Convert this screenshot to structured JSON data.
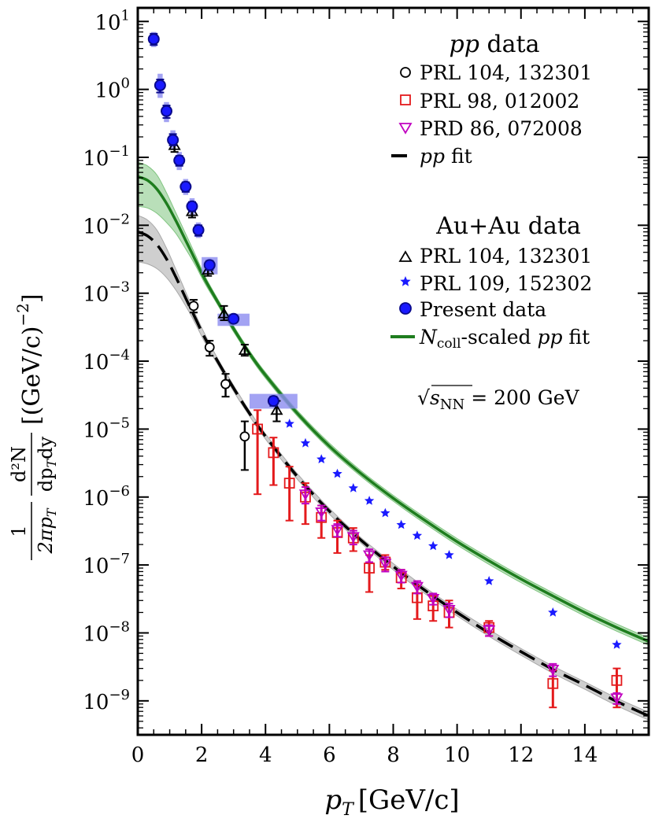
{
  "chart_data": {
    "type": "scatter",
    "xlabel_main": "p",
    "xlabel_sub": "T",
    "xlabel_unit": "[GeV/c]",
    "ylabel": "1/(2π p_T) d²N/(dp_T dy) [(GeV/c)⁻²]",
    "ylabel_parts": {
      "frac1_num": "1",
      "frac1_den": "2πp",
      "frac1_den_sub": "T",
      "frac2_num": "d²N",
      "frac2_den": "dp",
      "frac2_den_sub": "T",
      "frac2_den_tail": "dy",
      "unit": "[(GeV/c)",
      "unit_exp": "−2",
      "unit_close": "]"
    },
    "xlim": [
      0,
      16
    ],
    "ylim_log10": [
      -9.5,
      1.2
    ],
    "x_ticks": [
      0,
      2,
      4,
      6,
      8,
      10,
      12,
      14
    ],
    "y_tick_labels": [
      {
        "base": "10",
        "exp": "1",
        "v": 1
      },
      {
        "base": "10",
        "exp": "0",
        "v": 0
      },
      {
        "base": "10",
        "exp": "−1",
        "v": -1
      },
      {
        "base": "10",
        "exp": "−2",
        "v": -2
      },
      {
        "base": "10",
        "exp": "−3",
        "v": -3
      },
      {
        "base": "10",
        "exp": "−4",
        "v": -4
      },
      {
        "base": "10",
        "exp": "−5",
        "v": -5
      },
      {
        "base": "10",
        "exp": "−6",
        "v": -6
      },
      {
        "base": "10",
        "exp": "−7",
        "v": -7
      },
      {
        "base": "10",
        "exp": "−8",
        "v": -8
      },
      {
        "base": "10",
        "exp": "−9",
        "v": -9
      }
    ],
    "annotation": {
      "prefix": "√",
      "s": "s",
      "sub": "NN",
      "eq": " = 200 GeV"
    },
    "legend": {
      "pp_title_italic": "pp",
      "pp_title_rest": " data",
      "aa_title": "Au+Au data",
      "entries": [
        {
          "key": "pp_prl104",
          "label": "PRL 104, 132301"
        },
        {
          "key": "pp_prl98",
          "label": "PRL 98, 012002"
        },
        {
          "key": "pp_prd86",
          "label": "PRD 86, 072008"
        },
        {
          "key": "pp_fit",
          "label_italic": "pp",
          "label": " fit"
        },
        {
          "key": "aa_prl104",
          "label": "PRL 104, 132301"
        },
        {
          "key": "aa_prl109",
          "label": "PRL 109, 152302"
        },
        {
          "key": "aa_present",
          "label": "Present data"
        },
        {
          "key": "aa_fit",
          "label_italic_N": "N",
          "label_sub": "coll",
          "label_mid": "-scaled ",
          "label_italic_pp": "pp",
          "label": " fit"
        }
      ]
    },
    "colors": {
      "black": "#000000",
      "red": "#e41a1c",
      "magenta": "#c000c0",
      "blue": "#1a1aff",
      "navy": "#0a0a8c",
      "green": "#1e7d1e",
      "green_band": "#7fc47f",
      "gray_band": "#a8a8a8",
      "sys_box": "#8c8cf0"
    },
    "series": [
      {
        "name": "pp PRL 104, 132301",
        "marker": "circle-open",
        "color": "#000000",
        "x": [
          1.75,
          2.25,
          2.75,
          3.35
        ],
        "y": [
          0.00065,
          0.00016,
          4.6e-05,
          7.8e-06
        ],
        "ylo": [
          0.00052,
          0.00012,
          3e-05,
          2.5e-06
        ],
        "yhi": [
          0.0008,
          0.0002,
          6.5e-05,
          1.3e-05
        ]
      },
      {
        "name": "pp PRL 98, 012002",
        "marker": "square-open",
        "color": "#e41a1c",
        "x": [
          3.75,
          4.25,
          4.75,
          5.25,
          5.75,
          6.25,
          6.75,
          7.25,
          7.75,
          8.25,
          8.75,
          9.25,
          9.75,
          11.0,
          13.0,
          15.0
        ],
        "y": [
          1e-05,
          4.5e-06,
          1.6e-06,
          1e-06,
          5e-07,
          3e-07,
          2.5e-07,
          9e-08,
          1.1e-07,
          6.5e-08,
          3.3e-08,
          2.5e-08,
          2e-08,
          1.2e-08,
          1.8e-09,
          2e-09
        ],
        "ylo": [
          1.1e-06,
          1.5e-06,
          4.5e-07,
          4e-07,
          2.5e-07,
          1.5e-07,
          1.6e-07,
          4e-08,
          8.5e-08,
          4.5e-08,
          1.6e-08,
          1.5e-08,
          1.2e-08,
          9e-09,
          8e-10,
          8e-10
        ],
        "yhi": [
          1.9e-05,
          7.5e-06,
          2.8e-06,
          1.6e-06,
          7.5e-07,
          4.5e-07,
          3.5e-07,
          1.4e-07,
          1.4e-07,
          8.5e-08,
          5e-08,
          3.5e-08,
          3e-08,
          1.5e-08,
          2.8e-09,
          3e-09
        ]
      },
      {
        "name": "pp PRD 86, 072008",
        "marker": "triangle-down-open",
        "color": "#c000c0",
        "x": [
          5.25,
          5.75,
          6.25,
          6.75,
          7.25,
          7.75,
          8.25,
          8.75,
          9.25,
          9.75,
          11.0,
          13.0,
          15.0
        ],
        "y": [
          1.1e-06,
          6e-07,
          3.3e-07,
          2.6e-07,
          1.4e-07,
          1.05e-07,
          7e-08,
          4.8e-08,
          3.2e-08,
          2.2e-08,
          1.1e-08,
          2.9e-09,
          1.1e-09
        ],
        "ylo": [
          8e-07,
          4.5e-07,
          2.6e-07,
          2e-07,
          1.1e-07,
          8e-08,
          5.5e-08,
          3.8e-08,
          2.6e-08,
          1.7e-08,
          9e-09,
          2.3e-09,
          9e-10
        ],
        "yhi": [
          1.4e-06,
          7.5e-07,
          4e-07,
          3.2e-07,
          1.7e-07,
          1.3e-07,
          8.5e-08,
          5.8e-08,
          3.8e-08,
          2.7e-08,
          1.3e-08,
          3.5e-09,
          1.3e-09
        ]
      },
      {
        "name": "Au+Au PRL 104, 132301",
        "marker": "triangle-up-open",
        "color": "#000000",
        "x": [
          1.15,
          1.7,
          2.2,
          2.7,
          3.35,
          4.35
        ],
        "y": [
          0.15,
          0.016,
          0.0022,
          0.0005,
          0.000145,
          1.9e-05
        ],
        "ylo": [
          0.12,
          0.013,
          0.0018,
          0.0004,
          0.00012,
          1.3e-05
        ],
        "yhi": [
          0.18,
          0.019,
          0.0027,
          0.00065,
          0.000175,
          2.6e-05
        ]
      },
      {
        "name": "Au+Au PRL 109, 152302",
        "marker": "star",
        "color": "#1a1aff",
        "x": [
          4.75,
          5.25,
          5.75,
          6.25,
          6.75,
          7.25,
          7.75,
          8.25,
          8.75,
          9.25,
          9.75,
          11.0,
          13.0,
          15.0
        ],
        "y": [
          1.2e-05,
          6.2e-06,
          3.6e-06,
          2.2e-06,
          1.35e-06,
          8.8e-07,
          5.8e-07,
          3.9e-07,
          2.7e-07,
          1.9e-07,
          1.4e-07,
          5.8e-08,
          2e-08,
          6.7e-09
        ]
      },
      {
        "name": "Au+Au Present data",
        "marker": "circle-filled",
        "color": "#0a0a8c",
        "x": [
          0.5,
          0.7,
          0.9,
          1.1,
          1.3,
          1.5,
          1.7,
          1.9,
          2.25,
          3.0,
          4.25
        ],
        "y": [
          5.5,
          1.15,
          0.48,
          0.18,
          0.09,
          0.037,
          0.019,
          0.0085,
          0.0026,
          0.00042,
          2.6e-05
        ],
        "ylo": [
          4.5,
          0.9,
          0.38,
          0.15,
          0.075,
          0.031,
          0.016,
          0.007,
          0.0022,
          0.00037,
          2.2e-05
        ],
        "yhi": [
          6.6,
          1.4,
          0.58,
          0.22,
          0.105,
          0.043,
          0.022,
          0.01,
          0.003,
          0.00047,
          3e-05
        ],
        "sys_box": [
          {
            "x0": 0.42,
            "x1": 0.58,
            "y0": 4.2,
            "y1": 7.0
          },
          {
            "x0": 0.62,
            "x1": 0.78,
            "y0": 0.75,
            "y1": 1.7
          },
          {
            "x0": 0.82,
            "x1": 0.98,
            "y0": 0.33,
            "y1": 0.65
          },
          {
            "x0": 1.02,
            "x1": 1.18,
            "y0": 0.13,
            "y1": 0.25
          },
          {
            "x0": 1.22,
            "x1": 1.38,
            "y0": 0.065,
            "y1": 0.12
          },
          {
            "x0": 1.42,
            "x1": 1.58,
            "y0": 0.028,
            "y1": 0.048
          },
          {
            "x0": 1.62,
            "x1": 1.78,
            "y0": 0.014,
            "y1": 0.025
          },
          {
            "x0": 1.82,
            "x1": 1.98,
            "y0": 0.0065,
            "y1": 0.011
          },
          {
            "x0": 2.0,
            "x1": 2.5,
            "y0": 0.0019,
            "y1": 0.0034
          },
          {
            "x0": 2.5,
            "x1": 3.5,
            "y0": 0.00033,
            "y1": 0.0005
          },
          {
            "x0": 3.5,
            "x1": 5.0,
            "y0": 2e-05,
            "y1": 3.3e-05
          }
        ]
      }
    ],
    "curves": [
      {
        "name": "pp fit",
        "style": "dashed",
        "color": "#000000",
        "band_color": "#a8a8a8",
        "x": [
          0,
          0.3,
          0.6,
          0.9,
          1.2,
          1.5,
          1.8,
          2.1,
          2.5,
          3,
          3.5,
          4,
          5,
          6,
          7,
          8,
          9,
          10,
          11,
          12,
          13,
          14,
          15,
          16
        ],
        "y": [
          0.008,
          0.007,
          0.0052,
          0.0032,
          0.0017,
          0.00085,
          0.00043,
          0.00022,
          0.0001,
          4e-05,
          1.7e-05,
          7.8e-06,
          2e-06,
          6.2e-07,
          2.3e-07,
          9.5e-08,
          4.2e-08,
          2e-08,
          1e-08,
          5.3e-09,
          2.9e-09,
          1.7e-09,
          9.8e-10,
          6e-10
        ],
        "band_lo": [
          0.0029,
          0.0027,
          0.0023,
          0.0017,
          0.0011,
          0.00065,
          0.00036,
          0.00019,
          9e-05,
          3.6e-05,
          1.55e-05,
          7.1e-06,
          1.82e-06,
          5.6e-07,
          2.08e-07,
          8.5e-08,
          3.75e-08,
          1.78e-08,
          8.9e-09,
          4.7e-09,
          2.55e-09,
          1.48e-09,
          8.5e-10,
          5.2e-10
        ],
        "band_hi": [
          0.014,
          0.012,
          0.0085,
          0.0046,
          0.0022,
          0.00105,
          0.0005,
          0.00025,
          0.00011,
          4.4e-05,
          1.85e-05,
          8.5e-06,
          2.2e-06,
          6.8e-07,
          2.5e-07,
          1.05e-07,
          4.65e-08,
          2.22e-08,
          1.12e-08,
          5.9e-09,
          3.25e-09,
          1.9e-09,
          1.1e-09,
          6.8e-10
        ]
      },
      {
        "name": "Ncoll-scaled pp fit",
        "style": "solid",
        "color": "#1e7d1e",
        "band_color": "#7fc47f",
        "x": [
          0,
          0.3,
          0.6,
          0.9,
          1.2,
          1.5,
          1.8,
          2.1,
          2.5,
          3,
          3.5,
          4,
          5,
          6,
          7,
          8,
          9,
          10,
          11,
          12,
          13,
          14,
          15,
          16
        ],
        "y": [
          0.052,
          0.046,
          0.034,
          0.021,
          0.0115,
          0.006,
          0.0031,
          0.0016,
          0.00075,
          0.0003,
          0.00013,
          6.2e-05,
          1.7e-05,
          5.6e-06,
          2.2e-06,
          9.6e-07,
          4.5e-07,
          2.2e-07,
          1.15e-07,
          6.2e-08,
          3.5e-08,
          2e-08,
          1.2e-08,
          7.5e-09
        ],
        "band_lo": [
          0.019,
          0.018,
          0.015,
          0.011,
          0.0075,
          0.0045,
          0.0026,
          0.0014,
          0.00068,
          0.00027,
          0.000118,
          5.6e-05,
          1.55e-05,
          5.1e-06,
          2e-06,
          8.7e-07,
          4.05e-07,
          1.97e-07,
          1.02e-07,
          5.5e-08,
          3.1e-08,
          1.77e-08,
          1.06e-08,
          6.6e-09
        ],
        "band_hi": [
          0.085,
          0.075,
          0.055,
          0.03,
          0.015,
          0.0075,
          0.0037,
          0.0018,
          0.00083,
          0.00033,
          0.000142,
          6.8e-05,
          1.87e-05,
          6.2e-06,
          2.42e-06,
          1.06e-06,
          5e-07,
          2.45e-07,
          1.28e-07,
          6.9e-08,
          3.9e-08,
          2.24e-08,
          1.35e-08,
          8.4e-09
        ]
      }
    ]
  }
}
